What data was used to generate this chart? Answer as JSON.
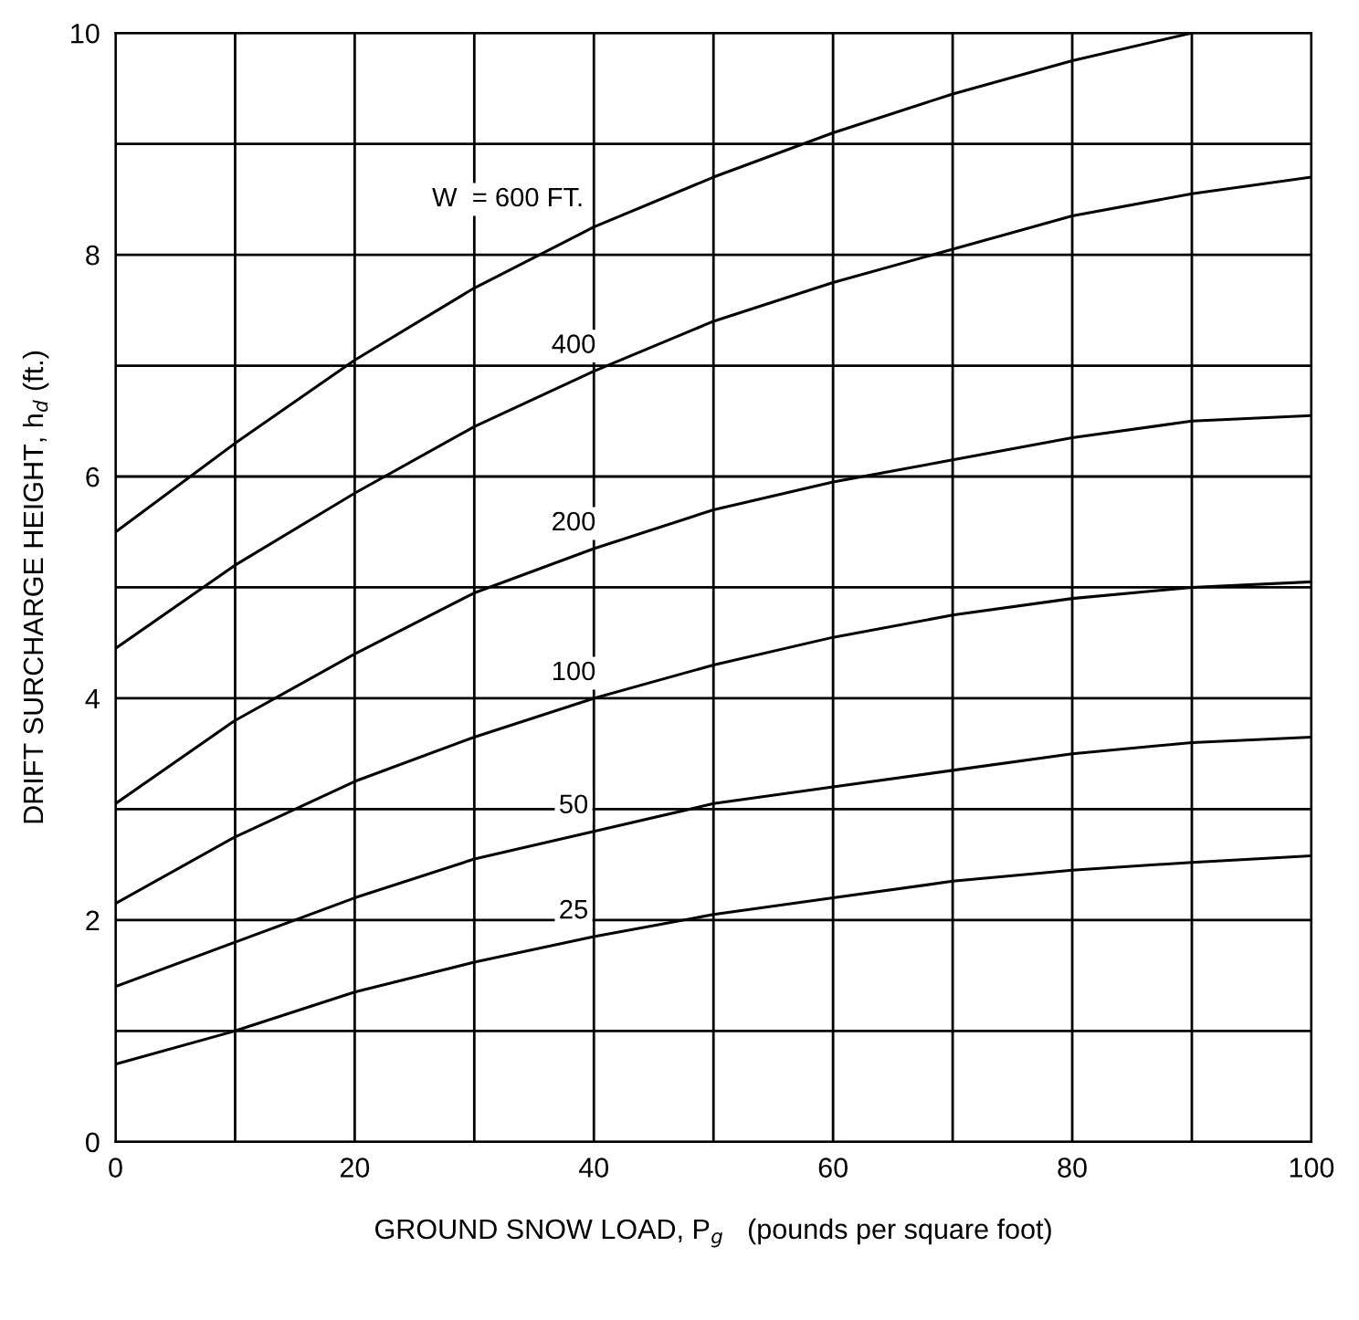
{
  "chart_data": {
    "type": "line",
    "xlabel": "GROUND SNOW LOAD, P$_{g}$   (pounds per square foot)",
    "ylabel": "DRIFT SURCHARGE HEIGHT, h$_{d}$ (ft.)",
    "x": [
      0,
      10,
      20,
      30,
      40,
      50,
      60,
      70,
      80,
      90,
      100
    ],
    "series": [
      {
        "name": "W  = 600 FT.",
        "color": "#000000",
        "x": [
          0,
          10,
          20,
          30,
          40,
          50,
          60,
          70,
          80,
          90
        ],
        "values": [
          5.5,
          6.3,
          7.05,
          7.7,
          8.25,
          8.7,
          9.1,
          9.45,
          9.75,
          10.0
        ]
      },
      {
        "name": "400",
        "color": "#000000",
        "values": [
          4.45,
          5.2,
          5.85,
          6.45,
          6.95,
          7.4,
          7.75,
          8.05,
          8.35,
          8.55,
          8.7
        ]
      },
      {
        "name": "200",
        "color": "#000000",
        "values": [
          3.05,
          3.8,
          4.4,
          4.95,
          5.35,
          5.7,
          5.95,
          6.15,
          6.35,
          6.5,
          6.55
        ]
      },
      {
        "name": "100",
        "color": "#000000",
        "values": [
          2.15,
          2.75,
          3.25,
          3.65,
          4.0,
          4.3,
          4.55,
          4.75,
          4.9,
          5.0,
          5.05
        ]
      },
      {
        "name": "50",
        "color": "#000000",
        "values": [
          1.4,
          1.8,
          2.2,
          2.55,
          2.8,
          3.05,
          3.2,
          3.35,
          3.5,
          3.6,
          3.65
        ]
      },
      {
        "name": "25",
        "color": "#000000",
        "values": [
          0.7,
          1.0,
          1.35,
          1.62,
          1.85,
          2.05,
          2.2,
          2.35,
          2.45,
          2.52,
          2.58
        ]
      }
    ],
    "xlim": [
      0,
      100
    ],
    "ylim": [
      0,
      10
    ],
    "xticks": [
      0,
      {
        "value": 10,
        "label": null
      },
      20,
      {
        "value": 30,
        "label": null
      },
      40,
      {
        "value": 50,
        "label": null
      },
      60,
      {
        "value": 70,
        "label": null
      },
      80,
      {
        "value": 90,
        "label": null
      },
      100
    ],
    "yticks": [
      0,
      {
        "value": 1,
        "label": null
      },
      2,
      {
        "value": 3,
        "label": null
      },
      4,
      {
        "value": 5,
        "label": null
      },
      6,
      {
        "value": 7,
        "label": null
      },
      8,
      {
        "value": 9,
        "label": null
      },
      10
    ],
    "grid": true,
    "legend": false,
    "marker": "none",
    "line_style": "solid"
  }
}
